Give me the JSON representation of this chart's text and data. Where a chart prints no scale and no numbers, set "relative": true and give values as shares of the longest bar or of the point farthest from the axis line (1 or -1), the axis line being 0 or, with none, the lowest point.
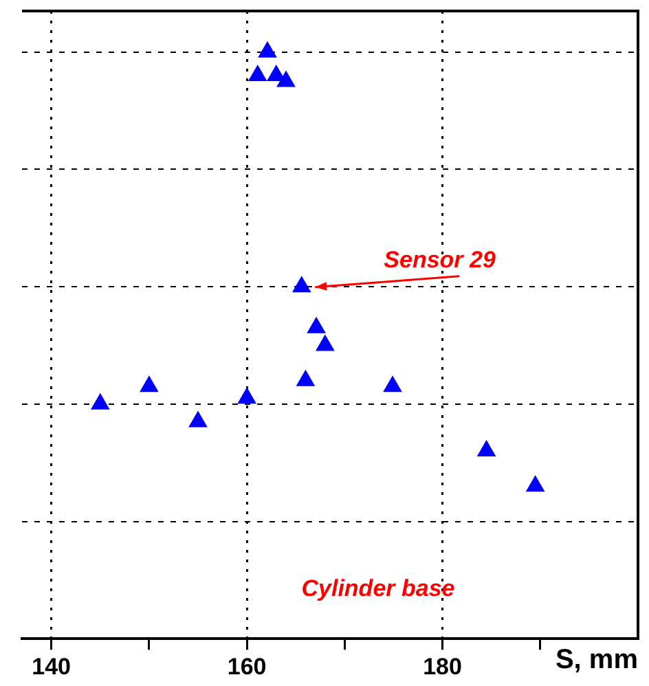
{
  "chart_data": {
    "type": "scatter",
    "relative": true,
    "xlabel": "S, mm",
    "xlim": [
      137,
      200
    ],
    "xticks": [
      140,
      {
        "value": 150,
        "label": null
      },
      160,
      {
        "value": 170,
        "label": null
      },
      180,
      {
        "value": 190,
        "label": null
      }
    ],
    "grid": true,
    "marker": "triangle",
    "legend": false,
    "x": [
      145,
      150,
      155,
      160,
      162.1,
      161.1,
      163,
      164,
      165.6,
      167.1,
      168,
      166,
      174.9,
      184.5,
      189.5
    ],
    "series": [
      {
        "color": "#0000ff",
        "values": [
          0.4,
          0.43,
          0.37,
          0.41,
          1,
          0.96,
          0.96,
          0.95,
          0.6,
          0.53,
          0.5,
          0.44,
          0.43,
          0.32,
          0.26
        ]
      }
    ],
    "annotations": [
      "Sensor 29",
      "Cylinder base"
    ]
  }
}
